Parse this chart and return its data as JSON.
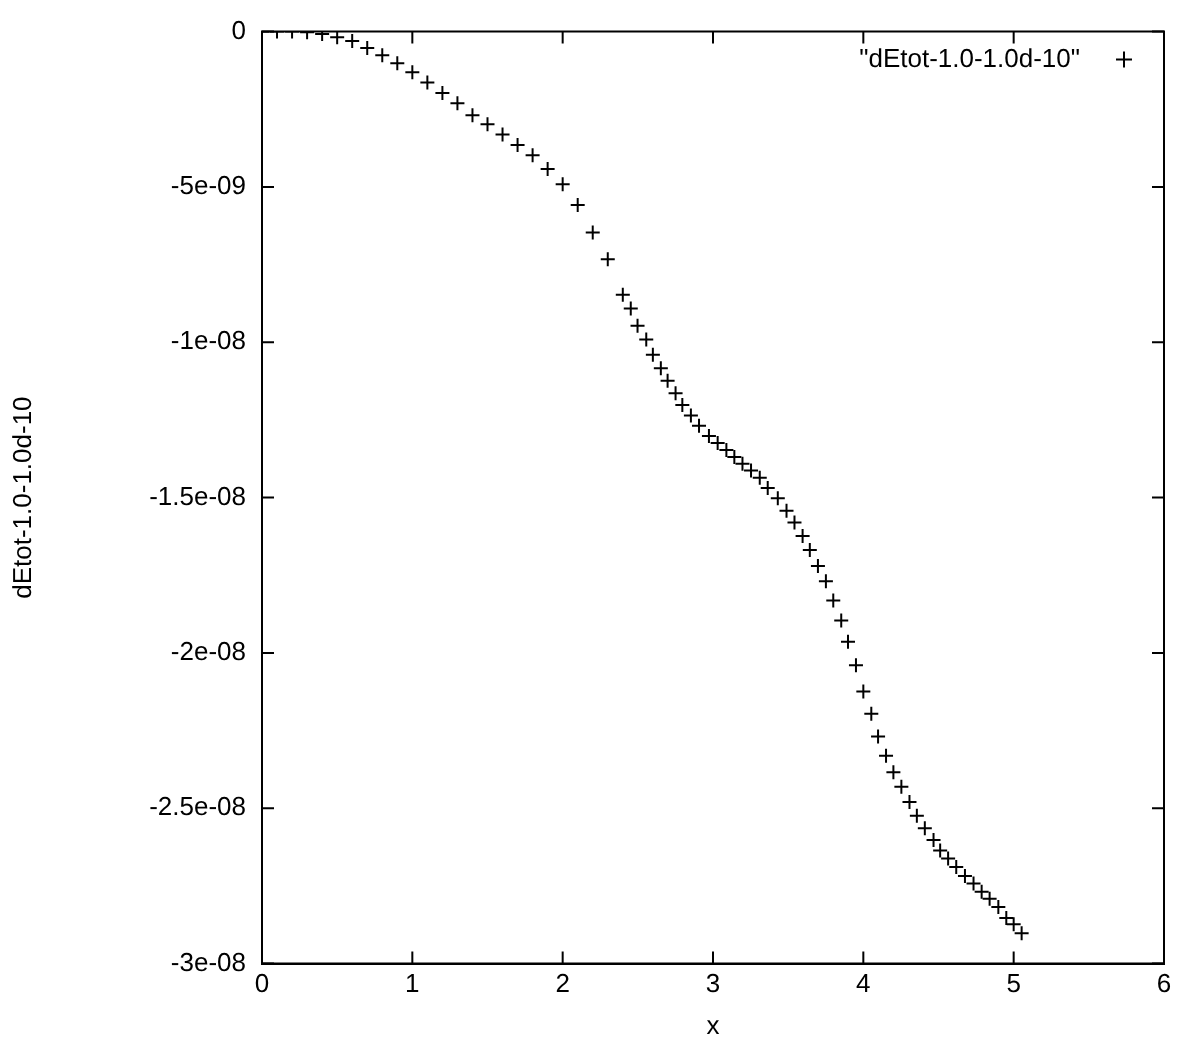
{
  "chart_data": {
    "type": "scatter",
    "xlabel": "x",
    "ylabel": "dEtot-1.0-1.0d-10",
    "series": [
      {
        "name": "\"dEtot-1.0-1.0d-10\"",
        "color": "#000000",
        "x": [
          0,
          0.1,
          0.2,
          0.3,
          0.4,
          0.5,
          0.6,
          0.7,
          0.8,
          0.9,
          1.0,
          1.1,
          1.2,
          1.3,
          1.4,
          1.5,
          1.6,
          1.7,
          1.8,
          1.9,
          2.0,
          2.1,
          2.2,
          2.3,
          2.4,
          2.453,
          2.498,
          2.556,
          2.6,
          2.653,
          2.698,
          2.751,
          2.796,
          2.853,
          2.907,
          2.973,
          3.031,
          3.089,
          3.142,
          3.196,
          3.253,
          3.311,
          3.364,
          3.431,
          3.489,
          3.542,
          3.596,
          3.644,
          3.698,
          3.751,
          3.8,
          3.853,
          3.898,
          3.951,
          4.0,
          4.053,
          4.098,
          4.151,
          4.2,
          4.253,
          4.307,
          4.356,
          4.409,
          4.467,
          4.511,
          4.564,
          4.618,
          4.676,
          4.733,
          4.787,
          4.84,
          4.898,
          4.951,
          5.0,
          5.053
        ],
        "values": [
          0,
          0,
          0,
          -2e-11,
          -8e-11,
          -1.8e-10,
          -3e-10,
          -5.3e-10,
          -7.6e-10,
          -1.02e-09,
          -1.31e-09,
          -1.64e-09,
          -1.98e-09,
          -2.31e-09,
          -2.69e-09,
          -2.98e-09,
          -3.31e-09,
          -3.65e-09,
          -3.98e-09,
          -4.42e-09,
          -4.91e-09,
          -5.58e-09,
          -6.47e-09,
          -7.33e-09,
          -8.47e-09,
          -8.91e-09,
          -9.47e-09,
          -9.91e-09,
          -1.04e-08,
          -1.084e-08,
          -1.124e-08,
          -1.164e-08,
          -1.202e-08,
          -1.236e-08,
          -1.269e-08,
          -1.302e-08,
          -1.324e-08,
          -1.347e-08,
          -1.369e-08,
          -1.391e-08,
          -1.413e-08,
          -1.436e-08,
          -1.469e-08,
          -1.502e-08,
          -1.542e-08,
          -1.58e-08,
          -1.624e-08,
          -1.669e-08,
          -1.72e-08,
          -1.769e-08,
          -1.831e-08,
          -1.896e-08,
          -1.964e-08,
          -2.04e-08,
          -2.124e-08,
          -2.196e-08,
          -2.269e-08,
          -2.331e-08,
          -2.384e-08,
          -2.431e-08,
          -2.48e-08,
          -2.524e-08,
          -2.564e-08,
          -2.602e-08,
          -2.636e-08,
          -2.662e-08,
          -2.689e-08,
          -2.718e-08,
          -2.742e-08,
          -2.769e-08,
          -2.791e-08,
          -2.818e-08,
          -2.853e-08,
          -2.873e-08,
          -2.902e-08
        ]
      }
    ],
    "xlim": [
      0,
      6
    ],
    "xticks": [
      0,
      1,
      2,
      3,
      4,
      5,
      6
    ],
    "ylim": [
      -3e-08,
      0
    ],
    "yticks": [
      {
        "value": -3e-08,
        "label": "-3e-08"
      },
      {
        "value": -2.5e-08,
        "label": "-2.5e-08"
      },
      {
        "value": -2e-08,
        "label": "-2e-08"
      },
      {
        "value": -1.5e-08,
        "label": "-1.5e-08"
      },
      {
        "value": -1e-08,
        "label": "-1e-08"
      },
      {
        "value": -5e-09,
        "label": "-5e-09"
      },
      0
    ],
    "grid": false,
    "legend": "top right",
    "marker": "cross"
  }
}
